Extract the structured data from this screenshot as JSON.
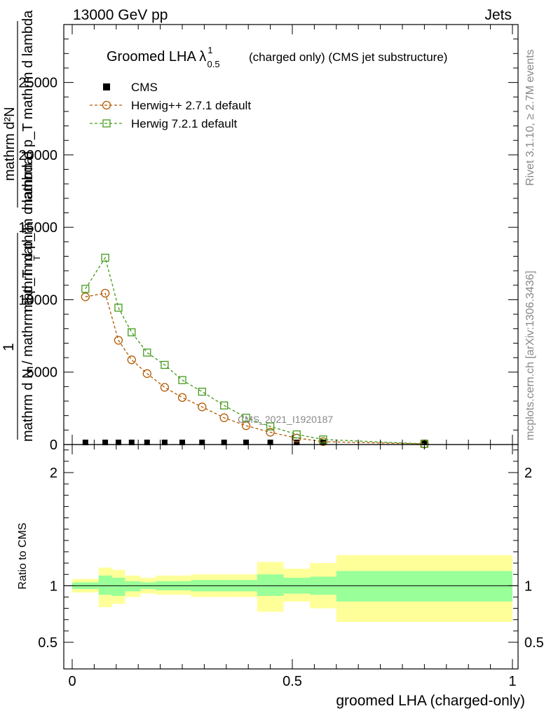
{
  "header": {
    "energy_label": "13000 GeV pp",
    "category_label": "Jets"
  },
  "sidebar": {
    "rivet_label": "Rivet 3.1.10, ≥ 2.7M events",
    "mcplots_label": "mcplots.cern.ch [arXiv:1306.3436]"
  },
  "chart_data": {
    "type": "line",
    "title": "Groomed LHA λ",
    "title_sup": "1",
    "title_sub": "0.5",
    "subtitle": "(charged only) (CMS jet substructure)",
    "analysis_tag": "CMS_2021_I1920187",
    "xlabel": "groomed LHA (charged-only)",
    "ylabel_upper": "mathrm d N / mathrm d p_T mathrm d lambda",
    "ylabel_fraction_num": "1",
    "ylabel_num": "mathrm d²N",
    "ylabel_den": "mathrm d p_T mathrm d lambda",
    "ylabel_den_var": "mathrm d p_T",
    "ylabel_den_sub": "T",
    "ylabel_ratio": "Ratio to CMS",
    "xlim": [
      -0.02,
      1.0
    ],
    "ylim": [
      0,
      29000
    ],
    "ratio_ylim": [
      0.35,
      2.35
    ],
    "x_ticks": [
      0,
      0.5,
      1
    ],
    "x_tick_labels": [
      "0",
      "0.5",
      "1"
    ],
    "y_ticks": [
      0,
      5000,
      10000,
      15000,
      20000,
      25000
    ],
    "y_tick_labels": [
      "0",
      "5000",
      "10000",
      "15000",
      "20000",
      "25000"
    ],
    "ratio_ticks": [
      0.5,
      1,
      2
    ],
    "ratio_tick_labels": [
      "0.5",
      "1",
      "2"
    ],
    "series": [
      {
        "name": "CMS",
        "color": "#000000",
        "marker": "filled-square",
        "x": [
          0.03,
          0.075,
          0.105,
          0.135,
          0.17,
          0.21,
          0.25,
          0.295,
          0.345,
          0.395,
          0.45,
          0.51,
          0.57,
          0.8
        ],
        "values": [
          15,
          15,
          15,
          15,
          15,
          15,
          15,
          15,
          15,
          15,
          15,
          15,
          10,
          5
        ]
      },
      {
        "name": "Herwig++ 2.7.1 default",
        "color": "#b25900",
        "marker": "open-circle",
        "x": [
          0.03,
          0.075,
          0.105,
          0.135,
          0.17,
          0.21,
          0.25,
          0.295,
          0.345,
          0.395,
          0.45,
          0.51,
          0.57,
          0.8
        ],
        "values": [
          10200,
          10450,
          7200,
          5850,
          4900,
          3950,
          3250,
          2600,
          1850,
          1300,
          850,
          450,
          200,
          40
        ]
      },
      {
        "name": "Herwig 7.2.1 default",
        "color": "#459a1c",
        "marker": "open-square",
        "x": [
          0.03,
          0.075,
          0.105,
          0.135,
          0.17,
          0.21,
          0.25,
          0.295,
          0.345,
          0.395,
          0.45,
          0.51,
          0.57,
          0.8
        ],
        "values": [
          10750,
          12900,
          9450,
          7750,
          6350,
          5500,
          4450,
          3650,
          2700,
          1850,
          1250,
          700,
          350,
          50
        ]
      }
    ],
    "ratio_bands": {
      "inner_color": "#99ff99",
      "outer_color": "#ffff99",
      "edges": [
        0,
        0.06,
        0.09,
        0.12,
        0.155,
        0.19,
        0.23,
        0.27,
        0.32,
        0.37,
        0.42,
        0.48,
        0.54,
        0.6,
        1.0
      ],
      "inner_lo": [
        0.97,
        0.92,
        0.91,
        0.95,
        0.97,
        0.96,
        0.96,
        0.95,
        0.95,
        0.95,
        0.91,
        0.93,
        0.92,
        0.86
      ],
      "inner_hi": [
        1.03,
        1.09,
        1.07,
        1.04,
        1.03,
        1.04,
        1.04,
        1.05,
        1.05,
        1.05,
        1.1,
        1.07,
        1.08,
        1.13
      ],
      "outer_lo": [
        0.94,
        0.81,
        0.84,
        0.9,
        0.93,
        0.92,
        0.92,
        0.9,
        0.9,
        0.9,
        0.77,
        0.86,
        0.8,
        0.68
      ],
      "outer_hi": [
        1.06,
        1.16,
        1.14,
        1.09,
        1.07,
        1.09,
        1.09,
        1.1,
        1.1,
        1.1,
        1.21,
        1.15,
        1.2,
        1.27
      ]
    }
  }
}
